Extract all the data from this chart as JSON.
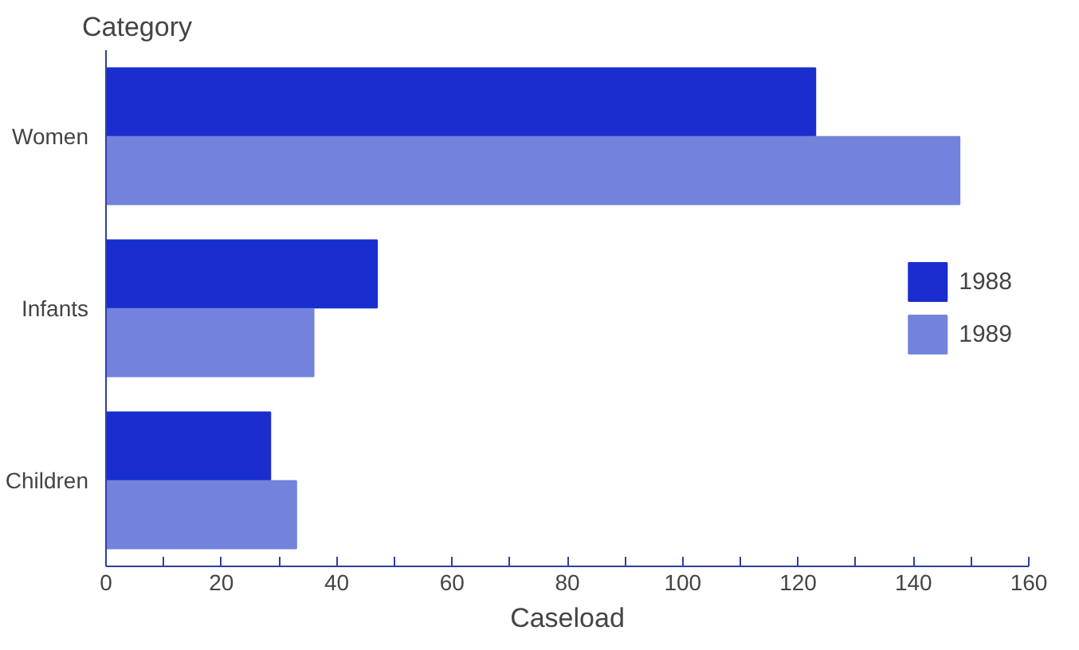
{
  "chart_data": {
    "type": "bar",
    "orientation": "horizontal",
    "ylabel": "Category",
    "xlabel": "Caseload",
    "categories": [
      "Women",
      "Infants",
      "Children"
    ],
    "series": [
      {
        "name": "1988",
        "color": "#1a2ecf",
        "values": [
          123,
          47,
          28.5
        ]
      },
      {
        "name": "1989",
        "color": "#7383dc",
        "values": [
          148,
          36,
          33
        ]
      }
    ],
    "xlim": [
      0,
      160
    ],
    "xticks": [
      0,
      {
        "value": 10,
        "label": null
      },
      20,
      {
        "value": 30,
        "label": null
      },
      40,
      {
        "value": 50,
        "label": null
      },
      60,
      {
        "value": 70,
        "label": null
      },
      80,
      {
        "value": 90,
        "label": null
      },
      100,
      {
        "value": 110,
        "label": null
      },
      120,
      {
        "value": 130,
        "label": null
      },
      140,
      {
        "value": 150,
        "label": null
      },
      160
    ],
    "legend": "right",
    "grid": false
  }
}
